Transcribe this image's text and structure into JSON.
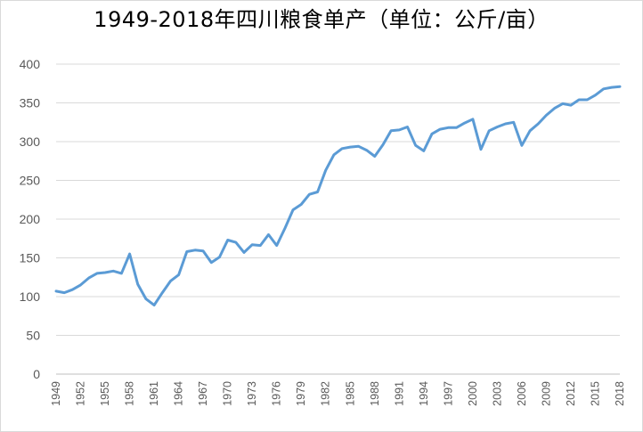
{
  "chart_data": {
    "type": "line",
    "title": "1949-2018年四川粮食单产（单位：公斤/亩）",
    "xlabel": "",
    "ylabel": "",
    "ylim": [
      0,
      400
    ],
    "yticks": [
      0,
      50,
      100,
      150,
      200,
      250,
      300,
      350,
      400
    ],
    "x_tick_labels": [
      "1949",
      "1952",
      "1955",
      "1958",
      "1961",
      "1964",
      "1967",
      "1970",
      "1973",
      "1976",
      "1979",
      "1982",
      "1985",
      "1988",
      "1991",
      "1994",
      "1997",
      "2000",
      "2003",
      "2006",
      "2009",
      "2012",
      "2015",
      "2018"
    ],
    "grid": true,
    "legend": "none",
    "line_color": "#5b9bd5",
    "series": [
      {
        "x": [
          1949,
          1950,
          1951,
          1952,
          1953,
          1954,
          1955,
          1956,
          1957,
          1958,
          1959,
          1960,
          1961,
          1962,
          1963,
          1964,
          1965,
          1966,
          1967,
          1968,
          1969,
          1970,
          1971,
          1972,
          1973,
          1974,
          1975,
          1976,
          1977,
          1978,
          1979,
          1980,
          1981,
          1982,
          1983,
          1984,
          1985,
          1986,
          1987,
          1988,
          1989,
          1990,
          1991,
          1992,
          1993,
          1994,
          1995,
          1996,
          1997,
          1998,
          1999,
          2000,
          2001,
          2002,
          2003,
          2004,
          2005,
          2006,
          2007,
          2008,
          2009,
          2010,
          2011,
          2012,
          2013,
          2014,
          2015,
          2016,
          2017,
          2018
        ],
        "values": [
          107,
          105,
          109,
          115,
          124,
          130,
          131,
          133,
          130,
          155,
          116,
          97,
          89,
          105,
          120,
          128,
          158,
          160,
          159,
          144,
          151,
          173,
          170,
          157,
          167,
          166,
          180,
          166,
          188,
          212,
          219,
          232,
          235,
          263,
          283,
          291,
          293,
          294,
          289,
          281,
          296,
          314,
          315,
          319,
          295,
          288,
          310,
          316,
          318,
          318,
          324,
          329,
          290,
          314,
          319,
          323,
          325,
          295,
          314,
          323,
          334,
          343,
          349,
          347,
          354,
          354,
          360,
          368,
          370,
          371
        ]
      }
    ]
  }
}
